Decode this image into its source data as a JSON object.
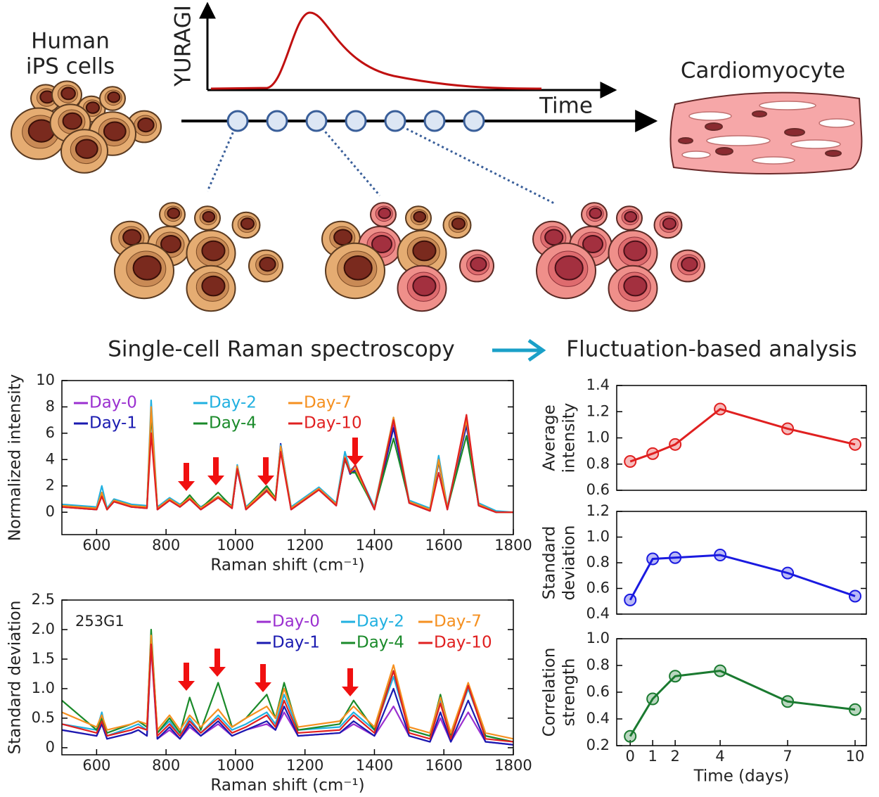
{
  "diagram": {
    "start_label": [
      "Human",
      "iPS cells"
    ],
    "end_label": "Cardiomyocyte",
    "schematic_ylabel": "YURAGI",
    "schematic_xlabel": "Time",
    "left_heading": "Single-cell Raman spectroscopy",
    "right_heading": "Fluctuation-based analysis"
  },
  "chart_data": [
    {
      "type": "line",
      "xlabel": "Raman shift (cm⁻¹)",
      "ylabel": "Normalized intensity",
      "xlim": [
        500,
        1800
      ],
      "xticks": [
        600,
        800,
        1000,
        1200,
        1400,
        1600,
        1800
      ],
      "ylim": [
        -1.7,
        10
      ],
      "yticks": [
        0,
        2,
        4,
        6,
        8,
        10
      ],
      "legend": "upper left",
      "x": [
        500,
        600,
        615,
        630,
        650,
        700,
        745,
        757,
        775,
        810,
        840,
        868,
        900,
        950,
        990,
        1005,
        1030,
        1090,
        1115,
        1130,
        1160,
        1240,
        1290,
        1315,
        1330,
        1345,
        1400,
        1455,
        1500,
        1560,
        1585,
        1610,
        1665,
        1700,
        1750,
        1800
      ],
      "series": [
        {
          "name": "Day-0",
          "color": "#9b30d0",
          "values": [
            0.5,
            0.3,
            1.4,
            0.2,
            0.9,
            0.5,
            0.4,
            7.5,
            0.3,
            1.0,
            0.5,
            1.0,
            0.3,
            1.1,
            0.4,
            3.2,
            0.3,
            1.7,
            1.0,
            4.8,
            0.3,
            1.8,
            0.6,
            4.0,
            3.0,
            3.1,
            0.3,
            6.6,
            0.8,
            0.2,
            3.8,
            0.3,
            6.8,
            0.6,
            0.0,
            0.0
          ]
        },
        {
          "name": "Day-1",
          "color": "#1a1ab0",
          "values": [
            0.4,
            0.2,
            1.5,
            0.2,
            0.8,
            0.4,
            0.3,
            7.8,
            0.2,
            0.9,
            0.4,
            1.0,
            0.2,
            1.1,
            0.3,
            3.3,
            0.2,
            1.7,
            0.9,
            5.2,
            0.2,
            1.7,
            0.5,
            4.1,
            2.9,
            3.2,
            0.2,
            6.4,
            0.7,
            0.1,
            3.9,
            0.2,
            6.6,
            0.5,
            0.0,
            0.0
          ]
        },
        {
          "name": "Day-2",
          "color": "#20b0e0",
          "values": [
            0.6,
            0.4,
            2.0,
            0.3,
            1.0,
            0.6,
            0.5,
            8.5,
            0.4,
            1.1,
            0.6,
            1.1,
            0.4,
            1.2,
            0.5,
            3.6,
            0.4,
            1.9,
            1.1,
            5.1,
            0.4,
            1.9,
            0.7,
            4.6,
            3.2,
            3.5,
            0.4,
            7.2,
            0.9,
            0.3,
            4.3,
            0.4,
            7.1,
            0.7,
            0.1,
            0.0
          ]
        },
        {
          "name": "Day-4",
          "color": "#1a8a2a",
          "values": [
            0.5,
            0.3,
            1.4,
            0.2,
            0.9,
            0.5,
            0.4,
            7.5,
            0.3,
            1.0,
            0.5,
            1.3,
            0.3,
            1.5,
            0.4,
            3.3,
            0.3,
            2.0,
            1.1,
            4.9,
            0.3,
            1.7,
            0.6,
            4.0,
            3.0,
            3.0,
            0.3,
            5.6,
            0.8,
            0.2,
            3.9,
            0.3,
            5.8,
            0.6,
            0.0,
            0.0
          ]
        },
        {
          "name": "Day-7",
          "color": "#f59020",
          "values": [
            0.5,
            0.3,
            1.5,
            0.2,
            0.9,
            0.5,
            0.4,
            8.0,
            0.3,
            1.0,
            0.5,
            1.1,
            0.3,
            1.2,
            0.4,
            3.5,
            0.3,
            1.8,
            1.0,
            5.0,
            0.3,
            1.8,
            0.6,
            4.2,
            3.1,
            3.3,
            0.3,
            7.2,
            0.8,
            0.2,
            4.0,
            0.3,
            7.0,
            0.6,
            0.0,
            0.0
          ]
        },
        {
          "name": "Day-10",
          "color": "#e02020",
          "values": [
            0.4,
            0.2,
            1.2,
            0.2,
            0.8,
            0.4,
            0.3,
            6.0,
            0.2,
            0.9,
            0.4,
            1.0,
            0.2,
            1.1,
            0.3,
            3.3,
            0.2,
            1.6,
            0.9,
            4.6,
            0.2,
            1.7,
            0.5,
            4.1,
            3.0,
            3.6,
            0.2,
            7.0,
            0.7,
            0.1,
            3.0,
            0.2,
            7.4,
            0.5,
            0.0,
            0.0
          ]
        }
      ]
    },
    {
      "type": "line",
      "xlabel": "Raman shift (cm⁻¹)",
      "ylabel": "Standard deviation",
      "annotation": "253G1",
      "xlim": [
        500,
        1800
      ],
      "xticks": [
        600,
        800,
        1000,
        1200,
        1400,
        1600,
        1800
      ],
      "ylim": [
        -0.12,
        2.5
      ],
      "yticks": [
        0,
        0.5,
        {
          "value": 1,
          "label": "1.0"
        },
        1.5,
        {
          "value": 2,
          "label": "2.0"
        },
        2.5
      ],
      "legend": "upper right",
      "x": [
        500,
        600,
        615,
        630,
        700,
        720,
        745,
        757,
        775,
        810,
        840,
        868,
        900,
        950,
        990,
        1030,
        1090,
        1115,
        1140,
        1180,
        1300,
        1340,
        1400,
        1455,
        1500,
        1560,
        1590,
        1620,
        1670,
        1720,
        1800
      ],
      "series": [
        {
          "name": "Day-0",
          "color": "#9b30d0",
          "values": [
            0.3,
            0.2,
            0.4,
            0.15,
            0.25,
            0.3,
            0.2,
            1.7,
            0.15,
            0.3,
            0.15,
            0.35,
            0.2,
            0.4,
            0.2,
            0.3,
            0.4,
            0.3,
            0.6,
            0.2,
            0.25,
            0.4,
            0.2,
            0.7,
            0.2,
            0.1,
            0.5,
            0.1,
            0.6,
            0.1,
            0.05
          ]
        },
        {
          "name": "Day-1",
          "color": "#1a1ab0",
          "values": [
            0.3,
            0.2,
            0.4,
            0.15,
            0.25,
            0.3,
            0.2,
            1.8,
            0.15,
            0.35,
            0.15,
            0.4,
            0.2,
            0.45,
            0.2,
            0.3,
            0.45,
            0.3,
            0.7,
            0.2,
            0.25,
            0.45,
            0.2,
            1.0,
            0.2,
            0.1,
            0.6,
            0.1,
            0.8,
            0.1,
            0.05
          ]
        },
        {
          "name": "Day-2",
          "color": "#20b0e0",
          "values": [
            0.4,
            0.3,
            0.6,
            0.2,
            0.35,
            0.4,
            0.3,
            1.9,
            0.25,
            0.45,
            0.2,
            0.5,
            0.25,
            0.55,
            0.3,
            0.4,
            0.6,
            0.4,
            0.9,
            0.3,
            0.35,
            0.6,
            0.3,
            1.2,
            0.3,
            0.2,
            0.8,
            0.2,
            1.0,
            0.2,
            0.1
          ]
        },
        {
          "name": "Day-4",
          "color": "#1a8a2a",
          "values": [
            0.8,
            0.3,
            0.5,
            0.25,
            0.4,
            0.45,
            0.35,
            2.0,
            0.25,
            0.5,
            0.25,
            0.85,
            0.3,
            1.1,
            0.35,
            0.5,
            0.9,
            0.5,
            1.1,
            0.3,
            0.4,
            0.8,
            0.3,
            1.3,
            0.3,
            0.2,
            0.9,
            0.2,
            1.05,
            0.2,
            0.1
          ]
        },
        {
          "name": "Day-7",
          "color": "#f59020",
          "values": [
            0.6,
            0.35,
            0.55,
            0.3,
            0.4,
            0.45,
            0.4,
            1.9,
            0.3,
            0.55,
            0.3,
            0.55,
            0.35,
            0.65,
            0.35,
            0.5,
            0.7,
            0.5,
            1.0,
            0.35,
            0.45,
            0.7,
            0.35,
            1.4,
            0.35,
            0.25,
            0.85,
            0.25,
            1.1,
            0.25,
            0.15
          ]
        },
        {
          "name": "Day-10",
          "color": "#e02020",
          "values": [
            0.4,
            0.25,
            0.45,
            0.2,
            0.3,
            0.35,
            0.3,
            1.75,
            0.2,
            0.4,
            0.2,
            0.45,
            0.25,
            0.5,
            0.25,
            0.35,
            0.55,
            0.35,
            0.8,
            0.25,
            0.3,
            0.55,
            0.25,
            1.3,
            0.25,
            0.15,
            0.75,
            0.15,
            1.05,
            0.15,
            0.1
          ]
        }
      ]
    },
    {
      "type": "line",
      "markers": true,
      "ylabel": [
        "Average",
        "intensity"
      ],
      "xlim": [
        -0.6,
        10.5
      ],
      "ylim": [
        0.6,
        1.4
      ],
      "yticks": [
        0.6,
        0.8,
        {
          "value": 1,
          "label": "1.0"
        },
        1.2,
        1.4
      ],
      "x": [
        0,
        1,
        2,
        4,
        7,
        10
      ],
      "series": [
        {
          "color": "#e02020",
          "values": [
            0.82,
            0.88,
            0.95,
            1.22,
            1.07,
            0.95
          ]
        }
      ]
    },
    {
      "type": "line",
      "markers": true,
      "ylabel": [
        "Standard",
        "deviation"
      ],
      "xlim": [
        -0.6,
        10.5
      ],
      "ylim": [
        0.4,
        1.2
      ],
      "yticks": [
        0.4,
        0.6,
        0.8,
        {
          "value": 1,
          "label": "1.0"
        },
        1.2
      ],
      "x": [
        0,
        1,
        2,
        4,
        7,
        10
      ],
      "series": [
        {
          "color": "#1a1ae0",
          "values": [
            0.51,
            0.83,
            0.84,
            0.86,
            0.72,
            0.54
          ]
        }
      ]
    },
    {
      "type": "line",
      "markers": true,
      "ylabel": [
        "Correlation",
        "strength"
      ],
      "xlabel": "Time (days)",
      "xlim": [
        -0.6,
        10.5
      ],
      "xticks": [
        0,
        1,
        2,
        4,
        7,
        10
      ],
      "ylim": [
        0.2,
        1.0
      ],
      "yticks": [
        0.2,
        0.4,
        0.6,
        0.8,
        {
          "value": 1,
          "label": "1.0"
        }
      ],
      "x": [
        0,
        1,
        2,
        4,
        7,
        10
      ],
      "series": [
        {
          "color": "#1a7a30",
          "values": [
            0.27,
            0.55,
            0.72,
            0.76,
            0.53,
            0.47
          ]
        }
      ]
    }
  ]
}
